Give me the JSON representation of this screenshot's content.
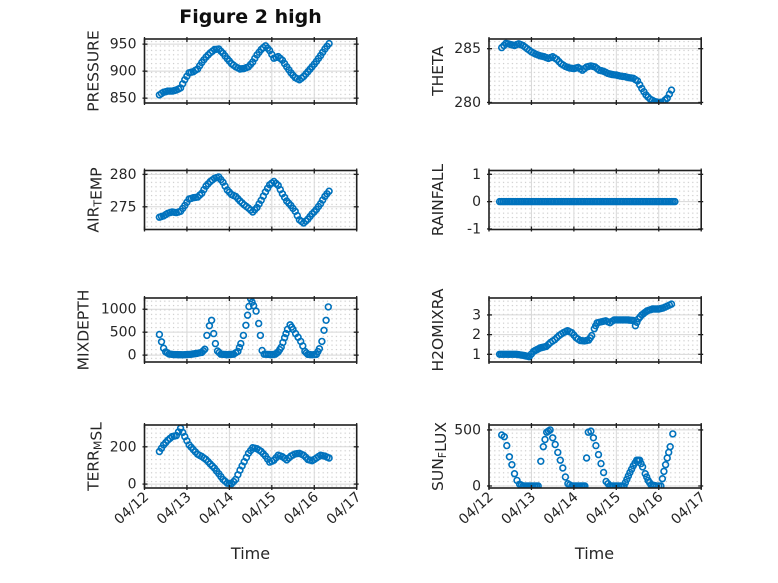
{
  "figure": {
    "title": "Figure 2 high",
    "xlabel": "Time"
  },
  "palette": {
    "marker": "#0072BD",
    "frame": "#1f1f1f",
    "grid_major": "#d8d8d8",
    "grid_minor_dot": "#c9c9c9",
    "text": "#262626",
    "background": "#ffffff"
  },
  "x_axis": {
    "lim": [
      12,
      17
    ],
    "ticks": [
      12,
      13,
      14,
      15,
      16,
      17
    ],
    "tick_labels": [
      "04/12",
      "04/13",
      "04/14",
      "04/15",
      "04/16",
      "04/17"
    ]
  },
  "sampling": {
    "step_days": 0.0417
  },
  "chart_data": [
    {
      "name": "pressure",
      "type": "scatter",
      "marker": "circle-open",
      "row": 0,
      "col": 0,
      "ylabel_parts": [
        "PRESSURE"
      ],
      "ylim": [
        841,
        959.5
      ],
      "yticks": [
        850,
        900,
        950
      ],
      "x": [
        12.35,
        12.45,
        12.55,
        12.65,
        12.75,
        12.85,
        12.95,
        13.05,
        13.15,
        13.25,
        13.35,
        13.45,
        13.55,
        13.65,
        13.75,
        13.85,
        13.95,
        14.05,
        14.15,
        14.25,
        14.35,
        14.45,
        14.55,
        14.65,
        14.75,
        14.85,
        14.95,
        15.05,
        15.15,
        15.25,
        15.35,
        15.45,
        15.55,
        15.65,
        15.75,
        15.85,
        15.95,
        16.05,
        16.15,
        16.25,
        16.35
      ],
      "y": [
        856,
        861,
        863,
        863,
        865,
        869,
        884,
        897,
        899,
        904,
        916,
        926,
        934,
        940,
        941,
        933,
        923,
        914,
        908,
        904,
        905,
        908,
        917,
        930,
        940,
        947,
        938,
        924,
        927,
        920,
        908,
        897,
        888,
        884,
        890,
        899,
        908,
        918,
        929,
        941,
        951
      ]
    },
    {
      "name": "theta",
      "type": "scatter",
      "marker": "circle-open",
      "row": 0,
      "col": 1,
      "ylabel_parts": [
        "THETA"
      ],
      "ylim": [
        279.95,
        285.9
      ],
      "yticks": [
        280,
        285
      ],
      "x": [
        12.3,
        12.4,
        12.5,
        12.6,
        12.7,
        12.8,
        12.9,
        13.0,
        13.1,
        13.2,
        13.3,
        13.4,
        13.5,
        13.6,
        13.7,
        13.8,
        13.9,
        14.0,
        14.1,
        14.2,
        14.3,
        14.4,
        14.5,
        14.6,
        14.7,
        14.8,
        14.9,
        15.0,
        15.1,
        15.2,
        15.3,
        15.4,
        15.5,
        15.6,
        15.7,
        15.8,
        15.9,
        16.0,
        16.1,
        16.2,
        16.3
      ],
      "y": [
        285.1,
        285.5,
        285.4,
        285.3,
        285.45,
        285.3,
        285.0,
        284.7,
        284.5,
        284.35,
        284.25,
        284.1,
        284.25,
        284.0,
        283.6,
        283.35,
        283.2,
        283.15,
        283.25,
        283.0,
        283.3,
        283.4,
        283.3,
        283.0,
        282.9,
        282.7,
        282.6,
        282.55,
        282.45,
        282.4,
        282.3,
        282.25,
        282.0,
        281.3,
        280.7,
        280.3,
        280.1,
        280.0,
        280.05,
        280.4,
        281.15
      ]
    },
    {
      "name": "air-temp",
      "type": "scatter",
      "marker": "circle-open",
      "row": 1,
      "col": 0,
      "ylabel_parts": [
        "AIR",
        {
          "sub": "T"
        },
        "EMP"
      ],
      "ylim": [
        271.5,
        280.6
      ],
      "yticks": [
        275,
        280
      ],
      "x": [
        12.35,
        12.45,
        12.55,
        12.65,
        12.75,
        12.85,
        12.95,
        13.05,
        13.15,
        13.25,
        13.35,
        13.45,
        13.55,
        13.65,
        13.75,
        13.85,
        13.95,
        14.05,
        14.15,
        14.25,
        14.35,
        14.45,
        14.55,
        14.65,
        14.75,
        14.85,
        14.95,
        15.05,
        15.15,
        15.25,
        15.35,
        15.45,
        15.55,
        15.65,
        15.75,
        15.85,
        15.95,
        16.05,
        16.15,
        16.25,
        16.35
      ],
      "y": [
        273.4,
        273.6,
        274.0,
        274.2,
        274.1,
        274.3,
        275.2,
        276.2,
        276.4,
        276.5,
        277.1,
        278.2,
        278.9,
        279.4,
        279.6,
        278.8,
        277.6,
        276.9,
        276.6,
        275.9,
        275.3,
        274.8,
        274.2,
        274.9,
        276.0,
        277.3,
        278.4,
        278.9,
        278.3,
        277.0,
        275.9,
        275.2,
        274.3,
        273.0,
        272.5,
        273.1,
        273.9,
        274.6,
        275.5,
        276.6,
        277.4
      ]
    },
    {
      "name": "rainfall",
      "type": "scatter",
      "marker": "circle-open",
      "row": 1,
      "col": 1,
      "ylabel_parts": [
        "RAINFALL"
      ],
      "ylim": [
        -1.02,
        1.14
      ],
      "yticks": [
        -1,
        0,
        1
      ],
      "x": [
        12.25,
        16.38
      ],
      "y": [
        0,
        0
      ]
    },
    {
      "name": "mixdepth",
      "type": "scatter",
      "marker": "circle-open",
      "row": 2,
      "col": 0,
      "ylabel_parts": [
        "MIXDEPTH"
      ],
      "ylim": [
        -150,
        1245
      ],
      "yticks": [
        0,
        500,
        1000
      ],
      "x": [
        12.35,
        12.4,
        12.45,
        12.5,
        12.58,
        12.7,
        12.9,
        13.1,
        13.25,
        13.35,
        13.42,
        13.47,
        13.53,
        13.58,
        13.63,
        13.67,
        13.72,
        13.8,
        13.95,
        14.1,
        14.2,
        14.27,
        14.33,
        14.39,
        14.43,
        14.46,
        14.5,
        14.57,
        14.63,
        14.69,
        14.73,
        14.77,
        14.82,
        15.0,
        15.08,
        15.15,
        15.22,
        15.3,
        15.37,
        15.43,
        15.5,
        15.56,
        15.62,
        15.68,
        15.73,
        15.78,
        15.85,
        15.95,
        16.05,
        16.12,
        16.18,
        16.23,
        16.28,
        16.33
      ],
      "y": [
        450,
        290,
        150,
        70,
        25,
        12,
        8,
        18,
        40,
        60,
        130,
        430,
        640,
        760,
        470,
        250,
        90,
        20,
        10,
        20,
        80,
        250,
        430,
        650,
        870,
        1060,
        1230,
        1080,
        960,
        690,
        430,
        100,
        20,
        10,
        20,
        70,
        170,
        380,
        560,
        660,
        560,
        470,
        390,
        300,
        200,
        80,
        15,
        8,
        15,
        140,
        300,
        540,
        760,
        1050
      ]
    },
    {
      "name": "h2omixra",
      "type": "scatter",
      "marker": "circle-open",
      "row": 2,
      "col": 1,
      "ylabel_parts": [
        "H2OMIXRA"
      ],
      "ylim": [
        0.61,
        3.86
      ],
      "yticks": [
        1,
        2,
        3
      ],
      "x": [
        12.25,
        12.45,
        12.65,
        12.8,
        12.95,
        13.05,
        13.2,
        13.35,
        13.45,
        13.55,
        13.65,
        13.75,
        13.85,
        13.95,
        14.05,
        14.15,
        14.25,
        14.35,
        14.42,
        14.48,
        14.55,
        14.65,
        14.75,
        14.85,
        14.95,
        15.1,
        15.25,
        15.4,
        15.45,
        15.52,
        15.6,
        15.72,
        15.85,
        16.0,
        16.1,
        16.2,
        16.3
      ],
      "y": [
        1.0,
        1.0,
        1.0,
        0.95,
        0.88,
        1.15,
        1.32,
        1.4,
        1.6,
        1.75,
        1.95,
        2.1,
        2.2,
        2.1,
        1.85,
        1.7,
        1.68,
        1.72,
        1.95,
        2.3,
        2.6,
        2.65,
        2.7,
        2.6,
        2.75,
        2.75,
        2.75,
        2.72,
        2.45,
        2.8,
        3.0,
        3.2,
        3.3,
        3.3,
        3.35,
        3.45,
        3.55
      ]
    },
    {
      "name": "terr-msl",
      "type": "scatter",
      "marker": "circle-open",
      "row": 3,
      "col": 0,
      "ylabel_parts": [
        "TERR",
        {
          "sub": "M"
        },
        "SL"
      ],
      "ylim": [
        -21,
        317
      ],
      "yticks": [
        0,
        200
      ],
      "x": [
        12.35,
        12.45,
        12.55,
        12.65,
        12.75,
        12.85,
        12.95,
        13.05,
        13.15,
        13.25,
        13.35,
        13.45,
        13.55,
        13.65,
        13.75,
        13.85,
        13.95,
        14.05,
        14.15,
        14.25,
        14.35,
        14.45,
        14.55,
        14.65,
        14.75,
        14.85,
        14.95,
        15.05,
        15.15,
        15.25,
        15.35,
        15.45,
        15.55,
        15.65,
        15.75,
        15.85,
        15.95,
        16.05,
        16.15,
        16.25,
        16.35
      ],
      "y": [
        175,
        210,
        235,
        255,
        260,
        300,
        255,
        210,
        185,
        160,
        148,
        132,
        108,
        85,
        55,
        25,
        5,
        2,
        25,
        75,
        120,
        165,
        195,
        190,
        175,
        150,
        118,
        128,
        155,
        147,
        130,
        150,
        162,
        165,
        155,
        132,
        125,
        140,
        155,
        150,
        140
      ]
    },
    {
      "name": "sun-flux",
      "type": "scatter",
      "marker": "circle-open",
      "row": 3,
      "col": 1,
      "ylabel_parts": [
        "SUN",
        {
          "sub": "F"
        },
        "LUX"
      ],
      "ylim": [
        -18,
        544
      ],
      "yticks": [
        0,
        500
      ],
      "x": [
        12.3,
        12.36,
        12.42,
        12.48,
        12.54,
        12.6,
        12.66,
        12.72,
        12.8,
        13.0,
        13.16,
        13.22,
        13.28,
        13.36,
        13.44,
        13.5,
        13.56,
        13.62,
        13.68,
        13.74,
        13.8,
        13.86,
        13.95,
        14.15,
        14.26,
        14.3,
        14.34,
        14.4,
        14.46,
        14.52,
        14.58,
        14.64,
        14.7,
        14.76,
        14.85,
        15.05,
        15.18,
        15.25,
        15.32,
        15.4,
        15.48,
        15.55,
        15.62,
        15.68,
        15.75,
        15.82,
        15.95,
        16.05,
        16.12,
        16.2,
        16.27,
        16.33
      ],
      "y": [
        455,
        440,
        360,
        260,
        190,
        110,
        50,
        15,
        0,
        0,
        0,
        220,
        350,
        480,
        500,
        430,
        370,
        300,
        230,
        160,
        80,
        20,
        0,
        0,
        0,
        250,
        480,
        490,
        430,
        360,
        280,
        200,
        120,
        40,
        0,
        0,
        0,
        60,
        120,
        180,
        230,
        230,
        170,
        110,
        50,
        10,
        0,
        0,
        130,
        250,
        350,
        465
      ]
    }
  ]
}
